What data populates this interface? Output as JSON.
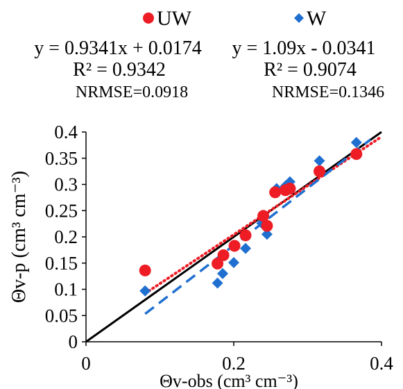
{
  "chart_data": {
    "type": "scatter",
    "xlabel": "Θv-obs (cm³ cm⁻³)",
    "ylabel": "Θv-p (cm³ cm⁻³)",
    "xlim": [
      0,
      0.4
    ],
    "ylim": [
      0,
      0.4
    ],
    "x_ticks": [
      "0",
      "0.2",
      "0.4"
    ],
    "y_ticks": [
      "0",
      "0.05",
      "0.1",
      "0.15",
      "0.2",
      "0.25",
      "0.3",
      "0.35",
      "0.4"
    ],
    "grid": false,
    "legend_position": "top",
    "series": [
      {
        "name": "UW",
        "marker": "circle",
        "color": "#ee1c25",
        "points": [
          {
            "x": 0.08,
            "y": 0.136
          },
          {
            "x": 0.178,
            "y": 0.149
          },
          {
            "x": 0.186,
            "y": 0.165
          },
          {
            "x": 0.201,
            "y": 0.183
          },
          {
            "x": 0.216,
            "y": 0.203
          },
          {
            "x": 0.24,
            "y": 0.24
          },
          {
            "x": 0.245,
            "y": 0.221
          },
          {
            "x": 0.256,
            "y": 0.285
          },
          {
            "x": 0.27,
            "y": 0.289
          },
          {
            "x": 0.276,
            "y": 0.292
          },
          {
            "x": 0.316,
            "y": 0.325
          },
          {
            "x": 0.366,
            "y": 0.358
          }
        ],
        "fit": {
          "slope": 0.9341,
          "intercept": 0.0174,
          "style": "dotted",
          "equation": "y = 0.9341x + 0.0174",
          "r2": "R² = 0.9342",
          "nrmse": "NRMSE=0.0918"
        }
      },
      {
        "name": "W",
        "marker": "diamond",
        "color": "#1f6fd0",
        "points": [
          {
            "x": 0.08,
            "y": 0.097
          },
          {
            "x": 0.178,
            "y": 0.112
          },
          {
            "x": 0.185,
            "y": 0.13
          },
          {
            "x": 0.2,
            "y": 0.151
          },
          {
            "x": 0.216,
            "y": 0.178
          },
          {
            "x": 0.238,
            "y": 0.226
          },
          {
            "x": 0.245,
            "y": 0.205
          },
          {
            "x": 0.258,
            "y": 0.292
          },
          {
            "x": 0.27,
            "y": 0.297
          },
          {
            "x": 0.276,
            "y": 0.305
          },
          {
            "x": 0.316,
            "y": 0.345
          },
          {
            "x": 0.366,
            "y": 0.38
          }
        ],
        "fit": {
          "slope": 1.09,
          "intercept": -0.0341,
          "style": "dashed",
          "equation": "y = 1.09x - 0.0341",
          "r2": "R² = 0.9074",
          "nrmse": "NRMSE=0.1346"
        }
      }
    ],
    "reference_line": {
      "name": "1:1",
      "slope": 1,
      "intercept": 0
    }
  }
}
